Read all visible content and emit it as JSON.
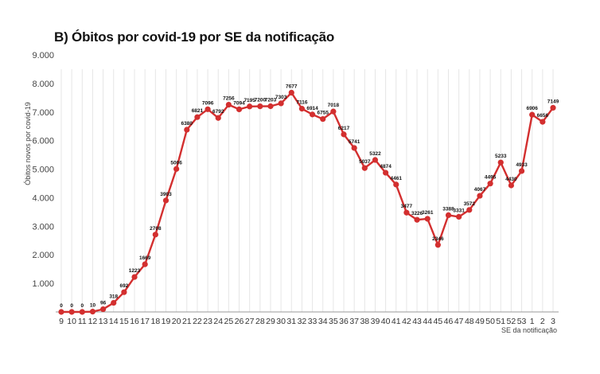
{
  "chart_data": {
    "type": "line",
    "title": "B) Óbitos por covid-19 por SE da notificação",
    "xlabel": "SE da notificação",
    "ylabel": "Óbitos novos por covid-19",
    "ylim": [
      0,
      9000
    ],
    "yticks": [
      "1.000",
      "2.000",
      "3.000",
      "4.000",
      "5.000",
      "6.000",
      "7.000",
      "8.000",
      "9.000"
    ],
    "grid": "vertical",
    "series_color": "#d32f2f",
    "x": [
      "9",
      "10",
      "11",
      "12",
      "13",
      "14",
      "15",
      "16",
      "17",
      "18",
      "19",
      "20",
      "21",
      "22",
      "23",
      "24",
      "25",
      "26",
      "27",
      "28",
      "29",
      "30",
      "31",
      "32",
      "33",
      "34",
      "35",
      "36",
      "37",
      "38",
      "39",
      "40",
      "41",
      "42",
      "43",
      "44",
      "45",
      "46",
      "47",
      "48",
      "49",
      "50",
      "51",
      "52",
      "53",
      "1",
      "2",
      "3"
    ],
    "values": [
      0,
      0,
      0,
      10,
      96,
      318,
      692,
      1223,
      1669,
      2708,
      3903,
      5006,
      6380,
      6821,
      7096,
      6792,
      7256,
      7094,
      7195,
      7200,
      7203,
      7303,
      7677,
      7116,
      6914,
      6755,
      7018,
      6217,
      5741,
      5037,
      5322,
      4874,
      4461,
      3477,
      3226,
      3261,
      2346,
      3388,
      3331,
      3572,
      4067,
      4495,
      5233,
      4430,
      4933,
      6906,
      6656,
      7149
    ],
    "labels": [
      "0",
      "0",
      "0",
      "10",
      "96",
      "318",
      "692",
      "1223",
      "1669",
      "2708",
      "3903",
      "5006",
      "6380",
      "6821",
      "7096",
      "6792",
      "7256",
      "7094",
      "7195",
      "7200",
      "7203",
      "7303",
      "7677",
      "7116",
      "6914",
      "6755",
      "7018",
      "6217",
      "5741",
      "5037",
      "5322",
      "4874",
      "4461",
      "3477",
      "3226",
      "3261",
      "2346",
      "3388",
      "3331",
      "3572",
      "4067",
      "4495",
      "5233",
      "4430",
      "4933",
      "6906",
      "6656",
      "7149"
    ]
  }
}
